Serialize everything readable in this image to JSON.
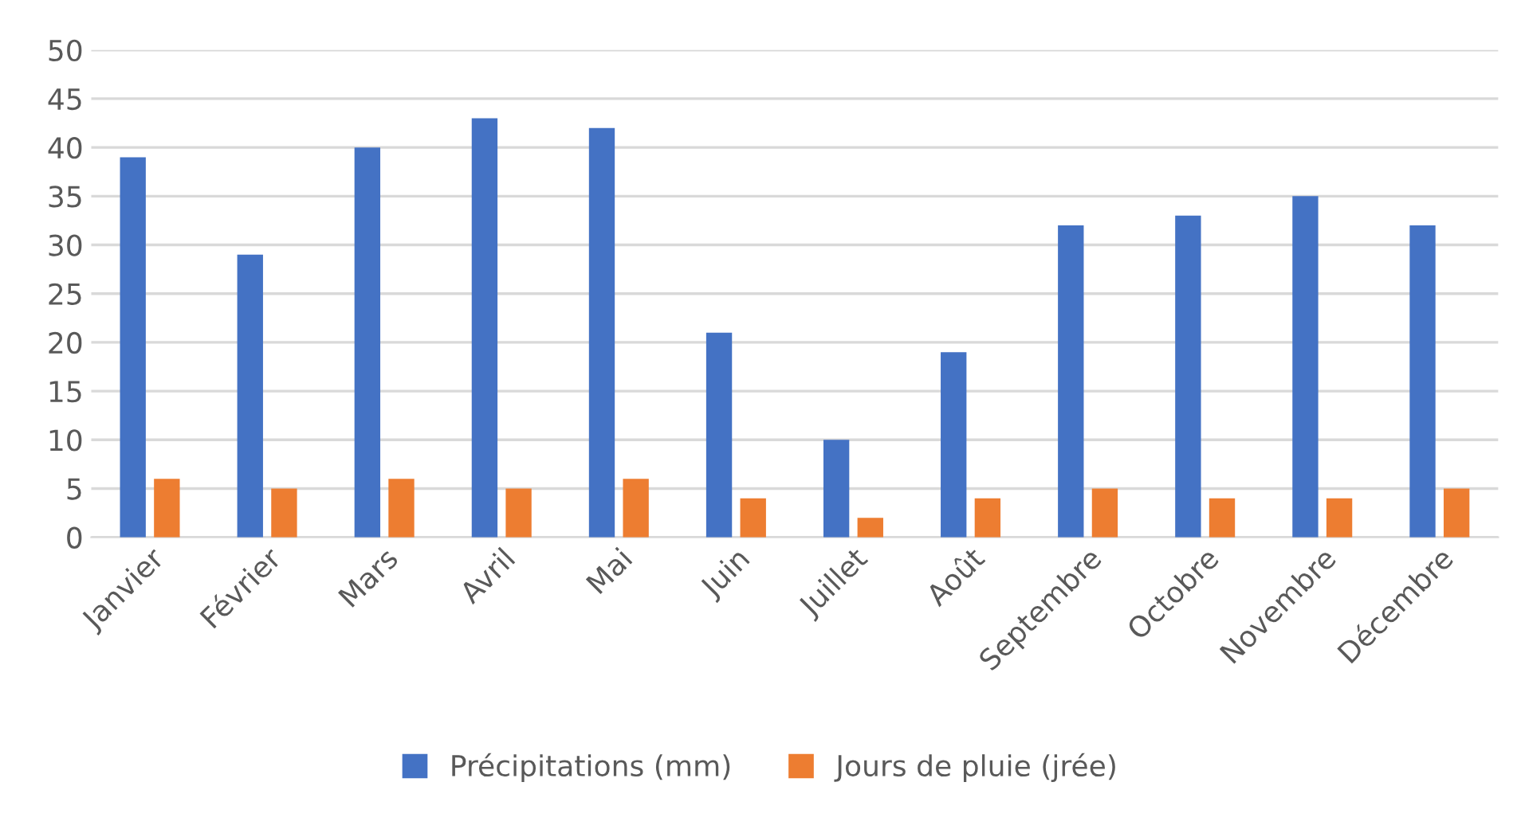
{
  "chart_data": {
    "type": "bar",
    "categories": [
      "Janvier",
      "Février",
      "Mars",
      "Avril",
      "Mai",
      "Juin",
      "Juillet",
      "Août",
      "Septembre",
      "Octobre",
      "Novembre",
      "Décembre"
    ],
    "series": [
      {
        "name": "Précipitations (mm)",
        "color": "#4472c4",
        "values": [
          39,
          29,
          40,
          43,
          42,
          21,
          10,
          19,
          32,
          33,
          35,
          32
        ]
      },
      {
        "name": "Jours de pluie (jrée)",
        "color": "#ed7d31",
        "values": [
          6,
          5,
          6,
          5,
          6,
          4,
          2,
          4,
          5,
          4,
          4,
          5
        ]
      }
    ],
    "ylim": [
      0,
      50
    ],
    "yticks": [
      0,
      5,
      10,
      15,
      20,
      25,
      30,
      35,
      40,
      45,
      50
    ],
    "grid": "y",
    "legend": "bottom"
  }
}
